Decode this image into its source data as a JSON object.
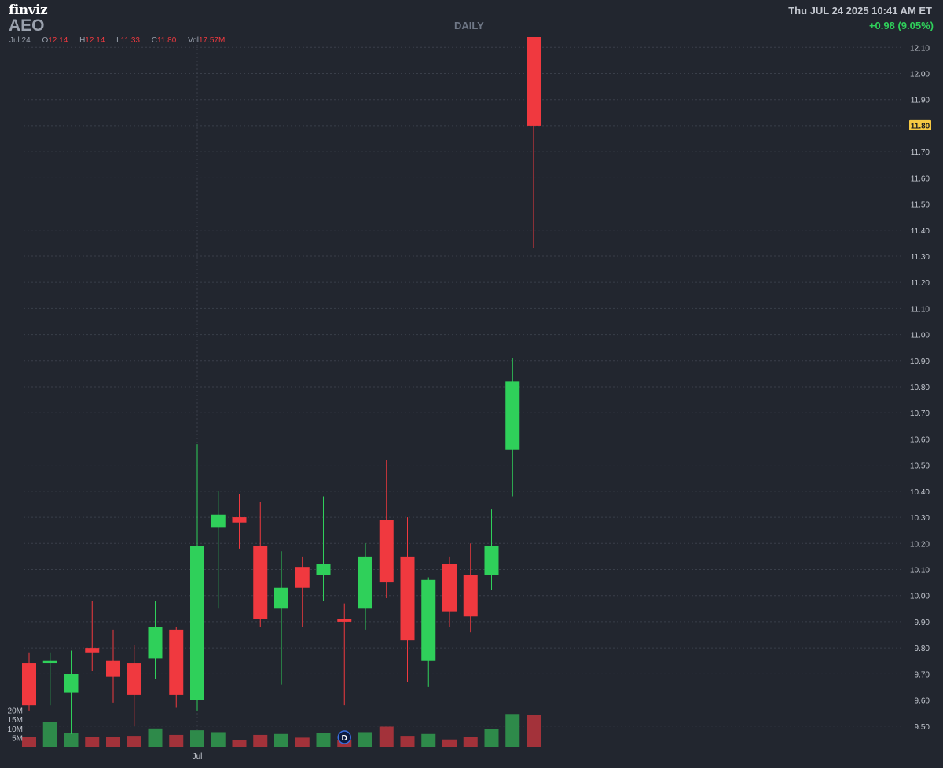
{
  "header": {
    "logo": "finviz",
    "ticker": "AEO",
    "interval": "DAILY",
    "datetime": "Thu JUL 24 2025 10:41 AM ET",
    "change": "+0.98 (9.05%)",
    "ohlc": {
      "date": "Jul 24",
      "o_label": "O",
      "o": "12.14",
      "h_label": "H",
      "h": "12.14",
      "l_label": "L",
      "l": "11.33",
      "c_label": "C",
      "c": "11.80",
      "vol_label": "Vol",
      "vol": "17.57M"
    }
  },
  "colors": {
    "background": "#22262f",
    "up": "#2fd05a",
    "down": "#f0393f",
    "up_volume": "#2e8a4a",
    "down_volume": "#a3323a",
    "grid": "#3a3f4a",
    "axis_text": "#c4c8d0",
    "price_tag": "#f5c842"
  },
  "chart_data": {
    "type": "candlestick",
    "y_ticks": [
      "9.50",
      "9.60",
      "9.70",
      "9.80",
      "9.90",
      "10.00",
      "10.10",
      "10.20",
      "10.30",
      "10.40",
      "10.50",
      "10.60",
      "10.70",
      "10.80",
      "10.90",
      "11.00",
      "11.10",
      "11.20",
      "11.30",
      "11.40",
      "11.50",
      "11.60",
      "11.70",
      "11.80",
      "11.90",
      "12.00",
      "12.10"
    ],
    "ylim": [
      9.43,
      12.14
    ],
    "current_price": "11.80",
    "x_label": "Jul",
    "x_label_index": 8,
    "volume_ticks": [
      "5M",
      "10M",
      "15M",
      "20M"
    ],
    "volume_max": 22,
    "earnings_marker_index": 15,
    "earnings_marker": "D",
    "candles": [
      {
        "o": 9.74,
        "h": 9.78,
        "l": 9.56,
        "c": 9.58,
        "v": 5.5
      },
      {
        "o": 9.74,
        "h": 9.78,
        "l": 9.58,
        "c": 9.75,
        "v": 13.5
      },
      {
        "o": 9.63,
        "h": 9.79,
        "l": 9.47,
        "c": 9.7,
        "v": 7.5
      },
      {
        "o": 9.8,
        "h": 9.98,
        "l": 9.71,
        "c": 9.78,
        "v": 5.5
      },
      {
        "o": 9.75,
        "h": 9.87,
        "l": 9.59,
        "c": 9.69,
        "v": 5.5
      },
      {
        "o": 9.74,
        "h": 9.81,
        "l": 9.5,
        "c": 9.62,
        "v": 6.0
      },
      {
        "o": 9.76,
        "h": 9.98,
        "l": 9.68,
        "c": 9.88,
        "v": 10.0
      },
      {
        "o": 9.87,
        "h": 9.88,
        "l": 9.57,
        "c": 9.62,
        "v": 6.5
      },
      {
        "o": 9.6,
        "h": 10.58,
        "l": 9.56,
        "c": 10.19,
        "v": 9.0
      },
      {
        "o": 10.26,
        "h": 10.4,
        "l": 9.95,
        "c": 10.31,
        "v": 8.0
      },
      {
        "o": 10.3,
        "h": 10.39,
        "l": 10.18,
        "c": 10.28,
        "v": 3.5
      },
      {
        "o": 10.19,
        "h": 10.36,
        "l": 9.88,
        "c": 9.91,
        "v": 6.5
      },
      {
        "o": 9.95,
        "h": 10.17,
        "l": 9.66,
        "c": 10.03,
        "v": 7.0
      },
      {
        "o": 10.11,
        "h": 10.15,
        "l": 9.88,
        "c": 10.03,
        "v": 5.0
      },
      {
        "o": 10.08,
        "h": 10.38,
        "l": 9.98,
        "c": 10.12,
        "v": 7.5
      },
      {
        "o": 9.91,
        "h": 9.97,
        "l": 9.58,
        "c": 9.9,
        "v": 3.5
      },
      {
        "o": 9.95,
        "h": 10.2,
        "l": 9.87,
        "c": 10.15,
        "v": 8.0
      },
      {
        "o": 10.29,
        "h": 10.52,
        "l": 9.99,
        "c": 10.05,
        "v": 11.0
      },
      {
        "o": 10.15,
        "h": 10.3,
        "l": 9.67,
        "c": 9.83,
        "v": 6.0
      },
      {
        "o": 9.75,
        "h": 10.07,
        "l": 9.65,
        "c": 10.06,
        "v": 7.0
      },
      {
        "o": 10.12,
        "h": 10.15,
        "l": 9.88,
        "c": 9.94,
        "v": 4.0
      },
      {
        "o": 10.08,
        "h": 10.2,
        "l": 9.86,
        "c": 9.92,
        "v": 5.5
      },
      {
        "o": 10.08,
        "h": 10.33,
        "l": 10.02,
        "c": 10.19,
        "v": 9.5
      },
      {
        "o": 10.56,
        "h": 10.91,
        "l": 10.38,
        "c": 10.82,
        "v": 18.0
      },
      {
        "o": 12.14,
        "h": 12.14,
        "l": 11.33,
        "c": 11.8,
        "v": 17.57
      }
    ]
  }
}
